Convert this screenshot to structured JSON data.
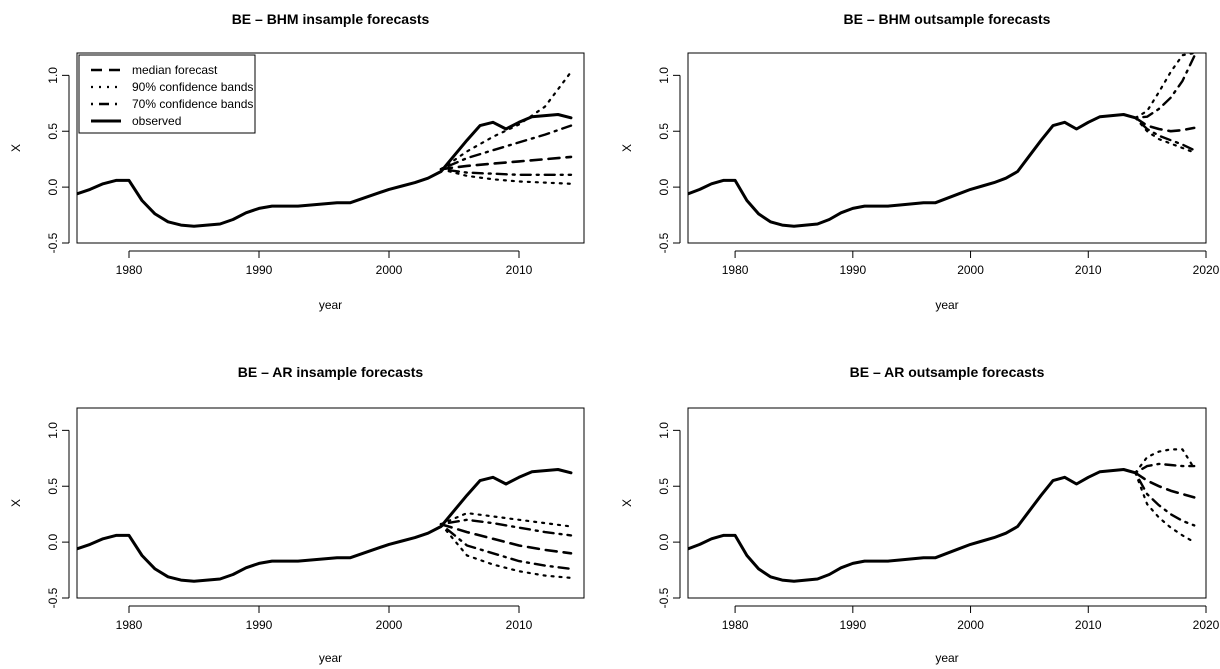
{
  "chart_data": [
    {
      "type": "line",
      "title": "BE – BHM insample forecasts",
      "xlabel": "year",
      "ylabel": "X",
      "xlim": [
        1976,
        2015
      ],
      "ylim": [
        -0.5,
        1.2
      ],
      "xticks": [
        1980,
        1990,
        2000,
        2010
      ],
      "yticks": [
        "-0.5",
        "0.0",
        "0.5",
        "1.0"
      ],
      "legend": {
        "position": "top-left",
        "entries": [
          "median forecast",
          "90% confidence bands",
          "70% confidence bands",
          "observed"
        ]
      },
      "series": [
        {
          "name": "observed",
          "style": "solid",
          "x": [
            1976,
            1977,
            1978,
            1979,
            1980,
            1981,
            1982,
            1983,
            1984,
            1985,
            1986,
            1987,
            1988,
            1989,
            1990,
            1991,
            1992,
            1993,
            1994,
            1995,
            1996,
            1997,
            1998,
            1999,
            2000,
            2001,
            2002,
            2003,
            2004,
            2005,
            2006,
            2007,
            2008,
            2009,
            2010,
            2011,
            2012,
            2013,
            2014
          ],
          "values": [
            -0.06,
            -0.02,
            0.03,
            0.06,
            0.06,
            -0.12,
            -0.24,
            -0.31,
            -0.34,
            -0.35,
            -0.34,
            -0.33,
            -0.29,
            -0.23,
            -0.19,
            -0.17,
            -0.17,
            -0.17,
            -0.16,
            -0.15,
            -0.14,
            -0.14,
            -0.1,
            -0.06,
            -0.02,
            0.01,
            0.04,
            0.08,
            0.14,
            0.28,
            0.42,
            0.55,
            0.58,
            0.52,
            0.58,
            0.63,
            0.64,
            0.65,
            0.62
          ]
        },
        {
          "name": "median forecast",
          "style": "dashed",
          "x": [
            2004,
            2006,
            2008,
            2010,
            2012,
            2014
          ],
          "values": [
            0.16,
            0.19,
            0.21,
            0.23,
            0.25,
            0.27
          ]
        },
        {
          "name": "70% confidence bands",
          "style": "dotdash",
          "x": [
            2004,
            2006,
            2008,
            2010,
            2012,
            2014
          ],
          "values": [
            0.16,
            0.26,
            0.33,
            0.4,
            0.47,
            0.55
          ]
        },
        {
          "name": "70% confidence bands",
          "style": "dotdash",
          "x": [
            2004,
            2006,
            2008,
            2010,
            2012,
            2014
          ],
          "values": [
            0.16,
            0.13,
            0.12,
            0.11,
            0.11,
            0.11
          ]
        },
        {
          "name": "90% confidence bands",
          "style": "dotted",
          "x": [
            2004,
            2006,
            2008,
            2010,
            2012,
            2014
          ],
          "values": [
            0.16,
            0.32,
            0.45,
            0.56,
            0.72,
            1.03
          ]
        },
        {
          "name": "90% confidence bands",
          "style": "dotted",
          "x": [
            2004,
            2006,
            2008,
            2010,
            2012,
            2014
          ],
          "values": [
            0.16,
            0.1,
            0.07,
            0.05,
            0.04,
            0.03
          ]
        }
      ]
    },
    {
      "type": "line",
      "title": "BE – BHM outsample forecasts",
      "xlabel": "year",
      "ylabel": "X",
      "xlim": [
        1976,
        2020
      ],
      "ylim": [
        -0.5,
        1.2
      ],
      "xticks": [
        1980,
        1990,
        2000,
        2010,
        2020
      ],
      "yticks": [
        "-0.5",
        "0.0",
        "0.5",
        "1.0"
      ],
      "series": [
        {
          "name": "observed",
          "style": "solid",
          "x": [
            1976,
            1977,
            1978,
            1979,
            1980,
            1981,
            1982,
            1983,
            1984,
            1985,
            1986,
            1987,
            1988,
            1989,
            1990,
            1991,
            1992,
            1993,
            1994,
            1995,
            1996,
            1997,
            1998,
            1999,
            2000,
            2001,
            2002,
            2003,
            2004,
            2005,
            2006,
            2007,
            2008,
            2009,
            2010,
            2011,
            2012,
            2013,
            2014
          ],
          "values": [
            -0.06,
            -0.02,
            0.03,
            0.06,
            0.06,
            -0.12,
            -0.24,
            -0.31,
            -0.34,
            -0.35,
            -0.34,
            -0.33,
            -0.29,
            -0.23,
            -0.19,
            -0.17,
            -0.17,
            -0.17,
            -0.16,
            -0.15,
            -0.14,
            -0.14,
            -0.1,
            -0.06,
            -0.02,
            0.01,
            0.04,
            0.08,
            0.14,
            0.28,
            0.42,
            0.55,
            0.58,
            0.52,
            0.58,
            0.63,
            0.64,
            0.65,
            0.62
          ]
        },
        {
          "name": "median forecast",
          "style": "dashed",
          "x": [
            2014,
            2015,
            2016,
            2017,
            2018,
            2019
          ],
          "values": [
            0.62,
            0.55,
            0.52,
            0.5,
            0.51,
            0.53
          ]
        },
        {
          "name": "70% confidence bands",
          "style": "dotdash",
          "x": [
            2014,
            2015,
            2016,
            2017,
            2018,
            2019
          ],
          "values": [
            0.62,
            0.63,
            0.7,
            0.8,
            0.95,
            1.17
          ]
        },
        {
          "name": "70% confidence bands",
          "style": "dotdash",
          "x": [
            2014,
            2015,
            2016,
            2017,
            2018,
            2019
          ],
          "values": [
            0.62,
            0.52,
            0.46,
            0.42,
            0.38,
            0.33
          ]
        },
        {
          "name": "90% confidence bands",
          "style": "dotted",
          "x": [
            2014,
            2015,
            2016,
            2017,
            2018,
            2019
          ],
          "values": [
            0.62,
            0.68,
            0.85,
            1.03,
            1.18,
            1.2
          ]
        },
        {
          "name": "90% confidence bands",
          "style": "dotted",
          "x": [
            2014,
            2015,
            2016,
            2017,
            2018,
            2019
          ],
          "values": [
            0.62,
            0.5,
            0.43,
            0.39,
            0.35,
            0.31
          ]
        }
      ]
    },
    {
      "type": "line",
      "title": "BE – AR insample forecasts",
      "xlabel": "year",
      "ylabel": "X",
      "xlim": [
        1976,
        2015
      ],
      "ylim": [
        -0.5,
        1.2
      ],
      "xticks": [
        1980,
        1990,
        2000,
        2010
      ],
      "yticks": [
        "-0.5",
        "0.0",
        "0.5",
        "1.0"
      ],
      "series": [
        {
          "name": "observed",
          "style": "solid",
          "x": [
            1976,
            1977,
            1978,
            1979,
            1980,
            1981,
            1982,
            1983,
            1984,
            1985,
            1986,
            1987,
            1988,
            1989,
            1990,
            1991,
            1992,
            1993,
            1994,
            1995,
            1996,
            1997,
            1998,
            1999,
            2000,
            2001,
            2002,
            2003,
            2004,
            2005,
            2006,
            2007,
            2008,
            2009,
            2010,
            2011,
            2012,
            2013,
            2014
          ],
          "values": [
            -0.06,
            -0.02,
            0.03,
            0.06,
            0.06,
            -0.12,
            -0.24,
            -0.31,
            -0.34,
            -0.35,
            -0.34,
            -0.33,
            -0.29,
            -0.23,
            -0.19,
            -0.17,
            -0.17,
            -0.17,
            -0.16,
            -0.15,
            -0.14,
            -0.14,
            -0.1,
            -0.06,
            -0.02,
            0.01,
            0.04,
            0.08,
            0.14,
            0.28,
            0.42,
            0.55,
            0.58,
            0.52,
            0.58,
            0.63,
            0.64,
            0.65,
            0.62
          ]
        },
        {
          "name": "median forecast",
          "style": "dashed",
          "x": [
            2004,
            2006,
            2008,
            2010,
            2012,
            2014
          ],
          "values": [
            0.16,
            0.09,
            0.03,
            -0.03,
            -0.07,
            -0.1
          ]
        },
        {
          "name": "70% confidence bands",
          "style": "dotdash",
          "x": [
            2004,
            2006,
            2008,
            2010,
            2012,
            2014
          ],
          "values": [
            0.16,
            0.2,
            0.17,
            0.13,
            0.09,
            0.06
          ]
        },
        {
          "name": "70% confidence bands",
          "style": "dotdash",
          "x": [
            2004,
            2006,
            2008,
            2010,
            2012,
            2014
          ],
          "values": [
            0.16,
            -0.03,
            -0.1,
            -0.17,
            -0.21,
            -0.24
          ]
        },
        {
          "name": "90% confidence bands",
          "style": "dotted",
          "x": [
            2004,
            2006,
            2008,
            2010,
            2012,
            2014
          ],
          "values": [
            0.16,
            0.26,
            0.23,
            0.2,
            0.17,
            0.14
          ]
        },
        {
          "name": "90% confidence bands",
          "style": "dotted",
          "x": [
            2004,
            2006,
            2008,
            2010,
            2012,
            2014
          ],
          "values": [
            0.16,
            -0.12,
            -0.2,
            -0.26,
            -0.3,
            -0.32
          ]
        }
      ]
    },
    {
      "type": "line",
      "title": "BE – AR outsample forecasts",
      "xlabel": "year",
      "ylabel": "X",
      "xlim": [
        1976,
        2020
      ],
      "ylim": [
        -0.5,
        1.2
      ],
      "xticks": [
        1980,
        1990,
        2000,
        2010,
        2020
      ],
      "yticks": [
        "-0.5",
        "0.0",
        "0.5",
        "1.0"
      ],
      "series": [
        {
          "name": "observed",
          "style": "solid",
          "x": [
            1976,
            1977,
            1978,
            1979,
            1980,
            1981,
            1982,
            1983,
            1984,
            1985,
            1986,
            1987,
            1988,
            1989,
            1990,
            1991,
            1992,
            1993,
            1994,
            1995,
            1996,
            1997,
            1998,
            1999,
            2000,
            2001,
            2002,
            2003,
            2004,
            2005,
            2006,
            2007,
            2008,
            2009,
            2010,
            2011,
            2012,
            2013,
            2014
          ],
          "values": [
            -0.06,
            -0.02,
            0.03,
            0.06,
            0.06,
            -0.12,
            -0.24,
            -0.31,
            -0.34,
            -0.35,
            -0.34,
            -0.33,
            -0.29,
            -0.23,
            -0.19,
            -0.17,
            -0.17,
            -0.17,
            -0.16,
            -0.15,
            -0.14,
            -0.14,
            -0.1,
            -0.06,
            -0.02,
            0.01,
            0.04,
            0.08,
            0.14,
            0.28,
            0.42,
            0.55,
            0.58,
            0.52,
            0.58,
            0.63,
            0.64,
            0.65,
            0.62
          ]
        },
        {
          "name": "median forecast",
          "style": "dashed",
          "x": [
            2014,
            2015,
            2016,
            2017,
            2018,
            2019
          ],
          "values": [
            0.62,
            0.55,
            0.5,
            0.46,
            0.43,
            0.4
          ]
        },
        {
          "name": "70% confidence bands",
          "style": "dotdash",
          "x": [
            2014,
            2015,
            2016,
            2017,
            2018,
            2019
          ],
          "values": [
            0.62,
            0.68,
            0.7,
            0.69,
            0.68,
            0.68
          ]
        },
        {
          "name": "70% confidence bands",
          "style": "dotdash",
          "x": [
            2014,
            2015,
            2016,
            2017,
            2018,
            2019
          ],
          "values": [
            0.62,
            0.43,
            0.33,
            0.25,
            0.19,
            0.15
          ]
        },
        {
          "name": "90% confidence bands",
          "style": "dotted",
          "x": [
            2014,
            2015,
            2016,
            2017,
            2018,
            2019
          ],
          "values": [
            0.62,
            0.76,
            0.81,
            0.83,
            0.83,
            0.66
          ]
        },
        {
          "name": "90% confidence bands",
          "style": "dotted",
          "x": [
            2014,
            2015,
            2016,
            2017,
            2018,
            2019
          ],
          "values": [
            0.62,
            0.34,
            0.22,
            0.13,
            0.06,
            0.0
          ]
        }
      ]
    }
  ]
}
